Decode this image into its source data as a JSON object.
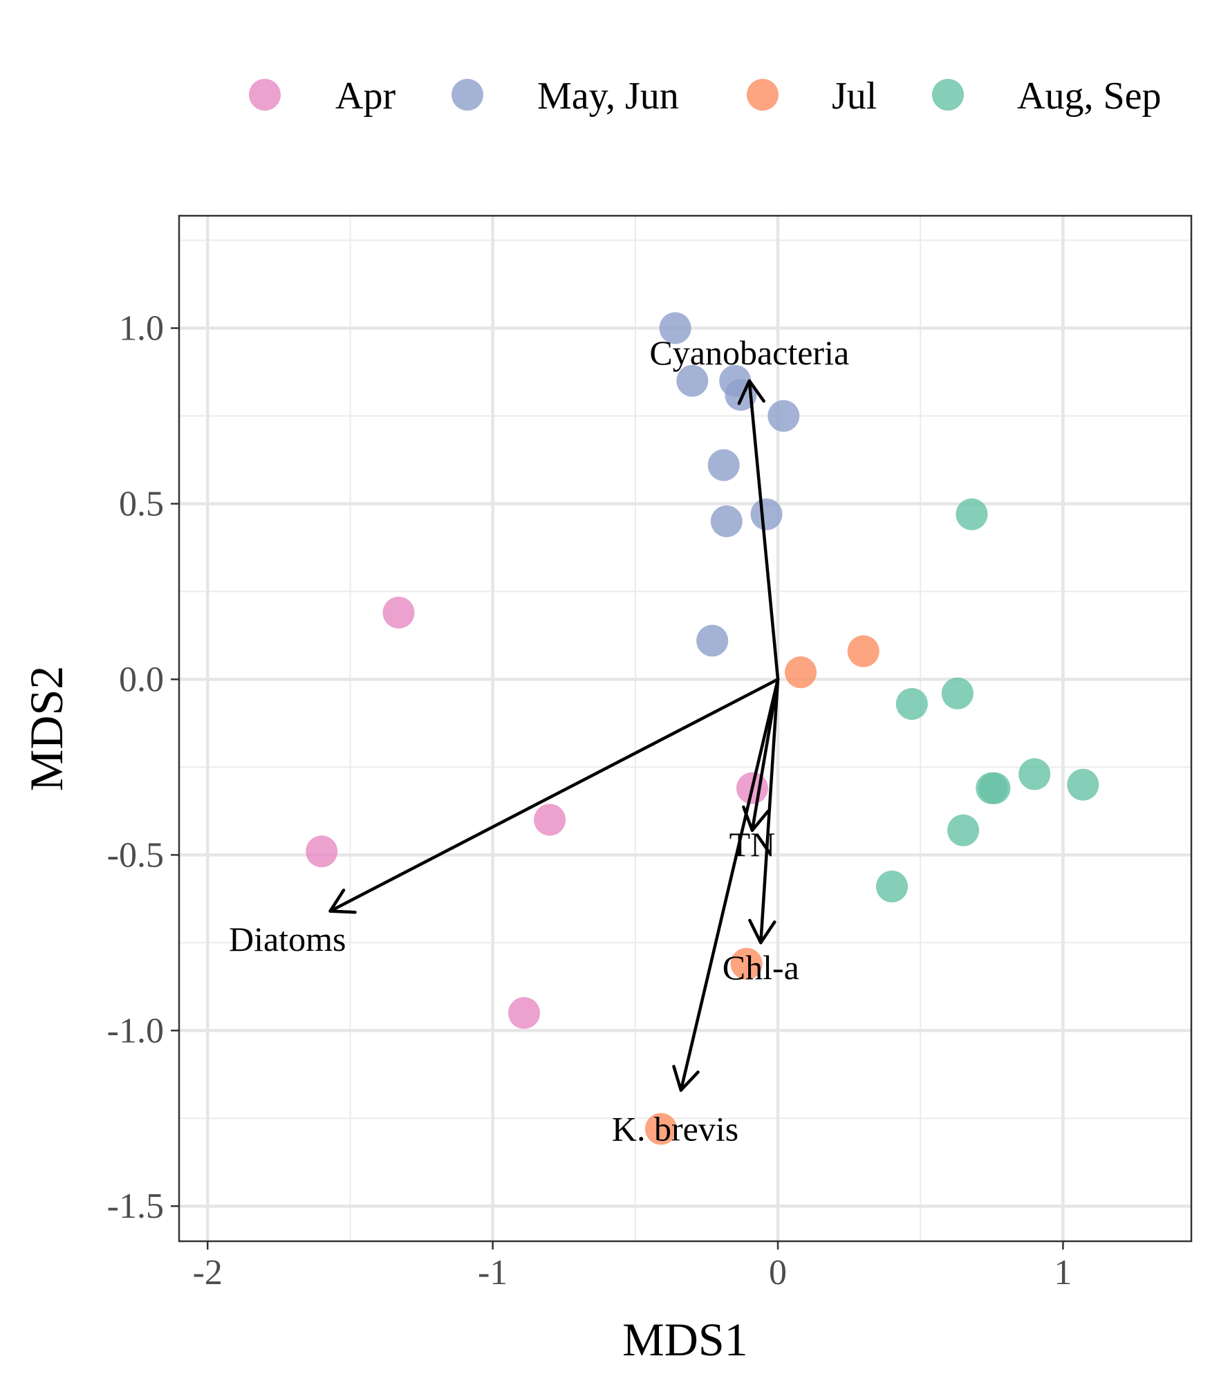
{
  "chart_data": {
    "type": "scatter",
    "xlabel": "MDS1",
    "ylabel": "MDS2",
    "xlim": [
      -2.1,
      1.45
    ],
    "ylim": [
      -1.6,
      1.32
    ],
    "x_ticks": [
      -2,
      -1,
      0,
      1
    ],
    "y_ticks": [
      -1.5,
      -1.0,
      -0.5,
      0.0,
      0.5,
      1.0
    ],
    "x_tick_labels": [
      "-2",
      "-1",
      "0",
      "1"
    ],
    "y_tick_labels": [
      "-1.5",
      "-1.0",
      "-0.5",
      "0.0",
      "0.5",
      "1.0"
    ],
    "grid": true,
    "legend_position": "top",
    "series": [
      {
        "name": "Apr",
        "color": "#e78ac3",
        "points": [
          [
            -1.33,
            0.19
          ],
          [
            -1.6,
            -0.49
          ],
          [
            -0.8,
            -0.4
          ],
          [
            -0.09,
            -0.31
          ],
          [
            -0.89,
            -0.95
          ]
        ]
      },
      {
        "name": "May, Jun",
        "color": "#8da0cb",
        "points": [
          [
            -0.36,
            1.0
          ],
          [
            -0.3,
            0.85
          ],
          [
            -0.15,
            0.85
          ],
          [
            -0.13,
            0.81
          ],
          [
            0.02,
            0.75
          ],
          [
            -0.19,
            0.61
          ],
          [
            -0.18,
            0.45
          ],
          [
            -0.04,
            0.47
          ],
          [
            -0.23,
            0.11
          ]
        ]
      },
      {
        "name": "Jul",
        "color": "#fc8d62",
        "points": [
          [
            0.3,
            0.08
          ],
          [
            0.08,
            0.02
          ],
          [
            -0.11,
            -0.81
          ],
          [
            -0.41,
            -1.28
          ]
        ]
      },
      {
        "name": "Aug, Sep",
        "color": "#66c2a5",
        "points": [
          [
            0.68,
            0.47
          ],
          [
            0.47,
            -0.07
          ],
          [
            0.63,
            -0.04
          ],
          [
            0.76,
            -0.31
          ],
          [
            0.75,
            -0.31
          ],
          [
            0.9,
            -0.27
          ],
          [
            1.07,
            -0.3
          ],
          [
            0.65,
            -0.43
          ],
          [
            0.4,
            -0.59
          ]
        ]
      }
    ],
    "vectors": [
      {
        "label": "Cyanobacteria",
        "x": -0.1,
        "y": 0.85,
        "label_x": -0.1,
        "label_y": 0.93
      },
      {
        "label": "Diatoms",
        "x": -1.57,
        "y": -0.66,
        "label_x": -1.72,
        "label_y": -0.74
      },
      {
        "label": "TN",
        "x": -0.09,
        "y": -0.43,
        "label_x": -0.09,
        "label_y": -0.47
      },
      {
        "label": "Chl-a",
        "x": -0.06,
        "y": -0.75,
        "label_x": -0.06,
        "label_y": -0.82
      },
      {
        "label": "K. brevis",
        "x": -0.34,
        "y": -1.17,
        "label_x": -0.36,
        "label_y": -1.28
      }
    ]
  }
}
